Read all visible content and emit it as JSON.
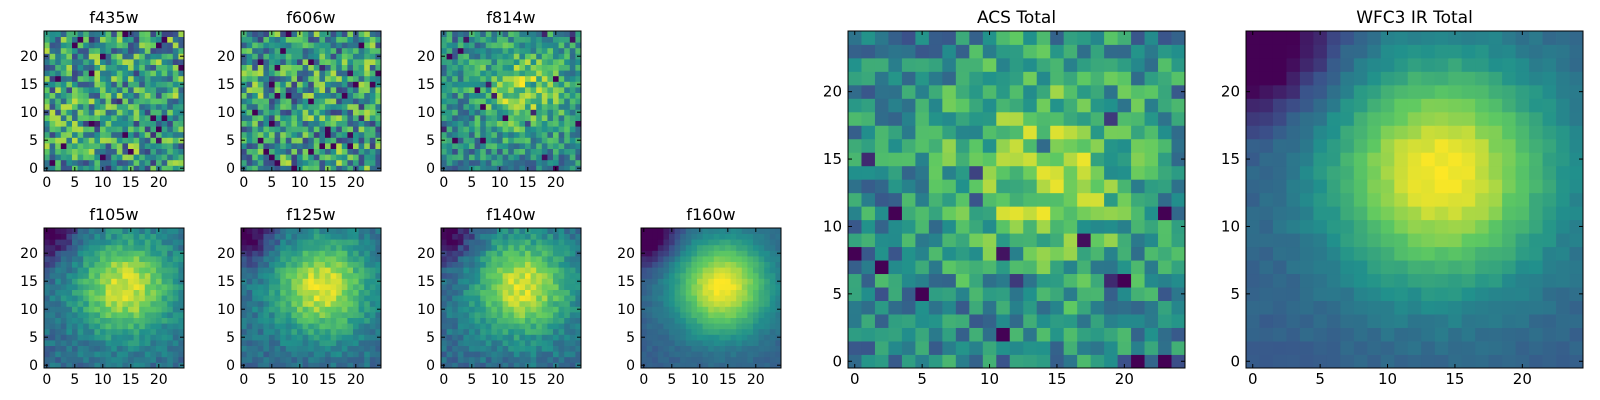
{
  "chart_data": [
    {
      "type": "heatmap",
      "title": "f435w",
      "pattern": "noise",
      "seed": 11,
      "xticks": [
        "0",
        "5",
        "10",
        "15",
        "20"
      ],
      "yticks": [
        "0",
        "5",
        "10",
        "15",
        "20"
      ],
      "xlim": [
        0,
        25
      ],
      "ylim": [
        0,
        25
      ]
    },
    {
      "type": "heatmap",
      "title": "f606w",
      "pattern": "noise",
      "seed": 23,
      "xticks": [
        "0",
        "5",
        "10",
        "15",
        "20"
      ],
      "yticks": [
        "0",
        "5",
        "10",
        "15",
        "20"
      ],
      "xlim": [
        0,
        25
      ],
      "ylim": [
        0,
        25
      ]
    },
    {
      "type": "heatmap",
      "title": "f814w",
      "pattern": "noisy-blob",
      "seed": 37,
      "xticks": [
        "0",
        "5",
        "10",
        "15",
        "20"
      ],
      "yticks": [
        "0",
        "5",
        "10",
        "15",
        "20"
      ],
      "xlim": [
        0,
        25
      ],
      "ylim": [
        0,
        25
      ]
    },
    {
      "type": "heatmap",
      "title": "f105w",
      "pattern": "blob",
      "seed": 41,
      "xticks": [
        "0",
        "5",
        "10",
        "15",
        "20"
      ],
      "yticks": [
        "0",
        "5",
        "10",
        "15",
        "20"
      ],
      "xlim": [
        0,
        25
      ],
      "ylim": [
        0,
        25
      ]
    },
    {
      "type": "heatmap",
      "title": "f125w",
      "pattern": "blob",
      "seed": 53,
      "xticks": [
        "0",
        "5",
        "10",
        "15",
        "20"
      ],
      "yticks": [
        "0",
        "5",
        "10",
        "15",
        "20"
      ],
      "xlim": [
        0,
        25
      ],
      "ylim": [
        0,
        25
      ]
    },
    {
      "type": "heatmap",
      "title": "f140w",
      "pattern": "blob",
      "seed": 67,
      "xticks": [
        "0",
        "5",
        "10",
        "15",
        "20"
      ],
      "yticks": [
        "0",
        "5",
        "10",
        "15",
        "20"
      ],
      "xlim": [
        0,
        25
      ],
      "ylim": [
        0,
        25
      ]
    },
    {
      "type": "heatmap",
      "title": "f160w",
      "pattern": "smooth-blob",
      "seed": 71,
      "xticks": [
        "0",
        "5",
        "10",
        "15",
        "20"
      ],
      "yticks": [
        "0",
        "5",
        "10",
        "15",
        "20"
      ],
      "xlim": [
        0,
        25
      ],
      "ylim": [
        0,
        25
      ]
    },
    {
      "type": "heatmap",
      "title": "ACS Total",
      "pattern": "noisy-blob",
      "seed": 83,
      "xticks": [
        "0",
        "5",
        "10",
        "15",
        "20"
      ],
      "yticks": [
        "0",
        "5",
        "10",
        "15",
        "20"
      ],
      "xlim": [
        0,
        25
      ],
      "ylim": [
        0,
        25
      ]
    },
    {
      "type": "heatmap",
      "title": "WFC3 IR Total",
      "pattern": "smooth-blob",
      "seed": 97,
      "xticks": [
        "0",
        "5",
        "10",
        "15",
        "20"
      ],
      "yticks": [
        "0",
        "5",
        "10",
        "15",
        "20"
      ],
      "xlim": [
        0,
        25
      ],
      "ylim": [
        0,
        25
      ]
    }
  ],
  "colormap": [
    "#440154",
    "#3b528b",
    "#21918c",
    "#5ec962",
    "#fde725"
  ]
}
